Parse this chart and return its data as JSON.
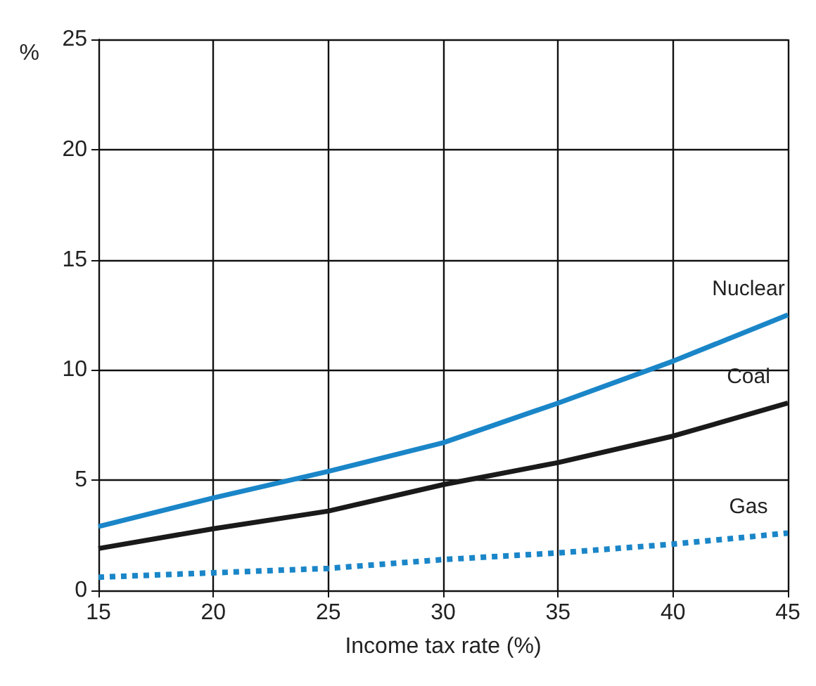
{
  "chart_data": {
    "type": "line",
    "xlabel": "Income tax rate (%)",
    "ylabel": "%",
    "x": [
      15,
      20,
      25,
      30,
      35,
      40,
      45
    ],
    "series": [
      {
        "name": "Nuclear",
        "color": "#1a86c8",
        "values": [
          2.9,
          4.2,
          5.4,
          6.7,
          8.5,
          10.4,
          12.5
        ],
        "line_style": "solid"
      },
      {
        "name": "Coal",
        "color": "#1a1a1a",
        "values": [
          1.9,
          2.8,
          3.6,
          4.8,
          5.8,
          7.0,
          8.5
        ],
        "line_style": "solid"
      },
      {
        "name": "Gas",
        "color": "#1a86c8",
        "values": [
          0.6,
          0.8,
          1.0,
          1.4,
          1.7,
          2.1,
          2.6
        ],
        "line_style": "dotted"
      }
    ],
    "xlim": [
      15,
      45
    ],
    "xticks": [
      15,
      20,
      25,
      30,
      35,
      40,
      45
    ],
    "ylim": [
      0,
      25
    ],
    "yticks": [
      0,
      5,
      10,
      15,
      20,
      25
    ],
    "grid": true,
    "legend": false,
    "marker": "none"
  }
}
